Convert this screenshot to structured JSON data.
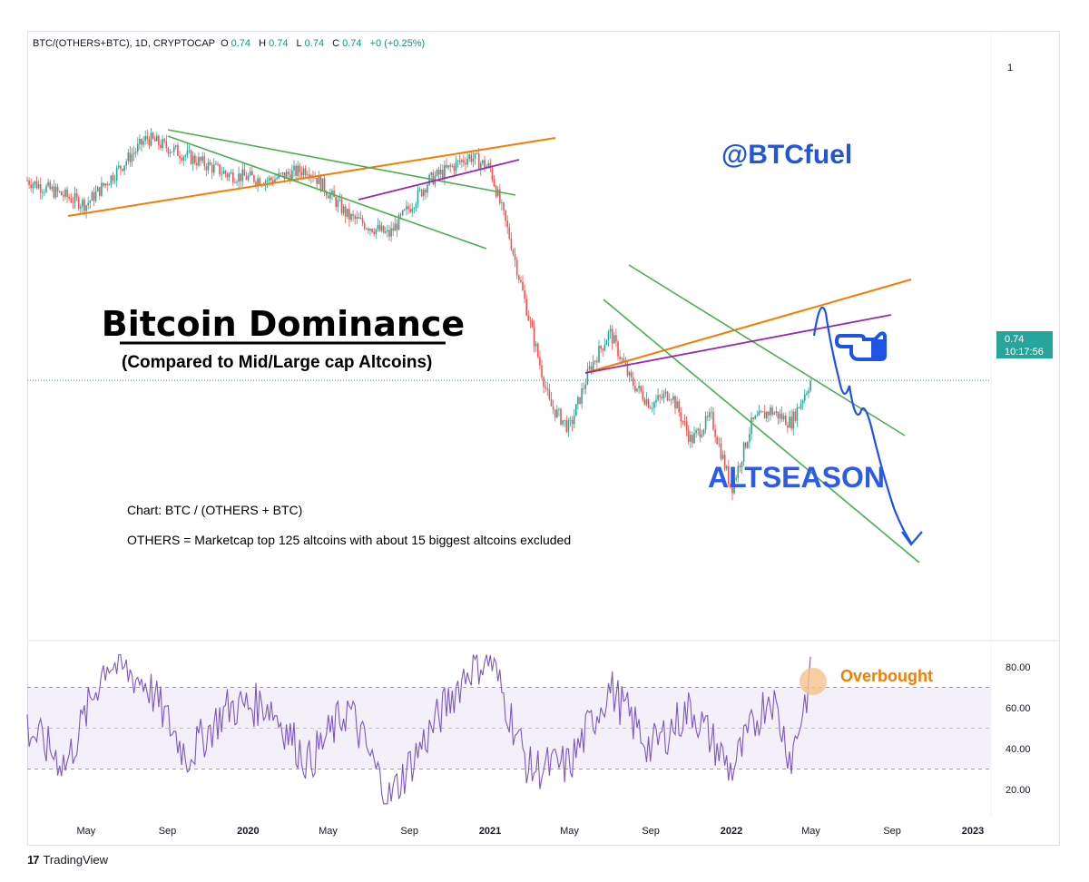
{
  "header": {
    "symbol": "BTC/(OTHERS+BTC), 1D, CRYPTOCAP",
    "ohlc": [
      {
        "k": "O",
        "v": "0.74"
      },
      {
        "k": "H",
        "v": "0.74"
      },
      {
        "k": "L",
        "v": "0.74"
      },
      {
        "k": "C",
        "v": "0.74"
      }
    ],
    "change": "+0 (+0.25%)"
  },
  "price_tag": {
    "value": "0.74",
    "countdown": "10:17:56"
  },
  "annotations": {
    "title": "Bitcoin Dominance",
    "subtitle": "(Compared to Mid/Large cap Altcoins)",
    "watermark": "@BTCfuel",
    "altseason": "ALTSEASON",
    "note1": "Chart: BTC / (OTHERS + BTC)",
    "note2": "OTHERS = Marketcap top 125 altcoins with about 15 biggest altcoins excluded",
    "overbought": "Overbought"
  },
  "footer": {
    "logo": "17",
    "brand": "TradingView"
  },
  "colors": {
    "up": "#26a69a",
    "down": "#ef5350",
    "rsi": "#7e57c2",
    "orange": "#f57c00",
    "green_trend": "#4caf50",
    "purple_trend": "#9c27b0",
    "blue_arrow": "#1e53e5"
  },
  "chart_data": [
    {
      "type": "line",
      "name": "price",
      "y_axis_ticks": [
        1
      ],
      "x_axis_ticks": [
        "May",
        "Sep",
        "2020",
        "May",
        "Sep",
        "2021",
        "May",
        "Sep",
        "2022",
        "May",
        "Sep",
        "2023"
      ],
      "x_axis_bold": [
        "2020",
        "2021",
        "2022",
        "2023"
      ],
      "x": [
        "2019-02",
        "2019-05",
        "2019-08",
        "2019-10",
        "2019-12",
        "2020-02",
        "2020-04",
        "2020-06",
        "2020-08",
        "2020-10",
        "2020-12",
        "2021-01",
        "2021-02",
        "2021-03",
        "2021-04",
        "2021-05",
        "2021-06",
        "2021-07",
        "2021-08",
        "2021-09",
        "2021-10",
        "2021-11",
        "2021-12",
        "2022-01",
        "2022-02",
        "2022-03",
        "2022-04",
        "2022-05"
      ],
      "y": [
        0.905,
        0.885,
        0.94,
        0.925,
        0.91,
        0.905,
        0.915,
        0.875,
        0.86,
        0.905,
        0.925,
        0.915,
        0.855,
        0.79,
        0.72,
        0.7,
        0.75,
        0.78,
        0.74,
        0.72,
        0.73,
        0.69,
        0.71,
        0.65,
        0.705,
        0.715,
        0.705,
        0.74
      ],
      "last_value": 0.74
    },
    {
      "type": "line",
      "name": "rsi",
      "y_axis_ticks": [
        20,
        40,
        60,
        80
      ],
      "bands": [
        30,
        50,
        70
      ],
      "x": [
        "2019-02",
        "2019-04",
        "2019-06",
        "2019-08",
        "2019-10",
        "2019-12",
        "2020-02",
        "2020-04",
        "2020-06",
        "2020-08",
        "2020-10",
        "2020-12",
        "2021-01",
        "2021-03",
        "2021-05",
        "2021-07",
        "2021-09",
        "2021-11",
        "2022-01",
        "2022-03",
        "2022-04",
        "2022-05"
      ],
      "y": [
        50,
        32,
        83,
        72,
        36,
        60,
        62,
        33,
        60,
        15,
        48,
        80,
        84,
        30,
        32,
        70,
        40,
        60,
        29,
        68,
        35,
        75
      ]
    }
  ]
}
